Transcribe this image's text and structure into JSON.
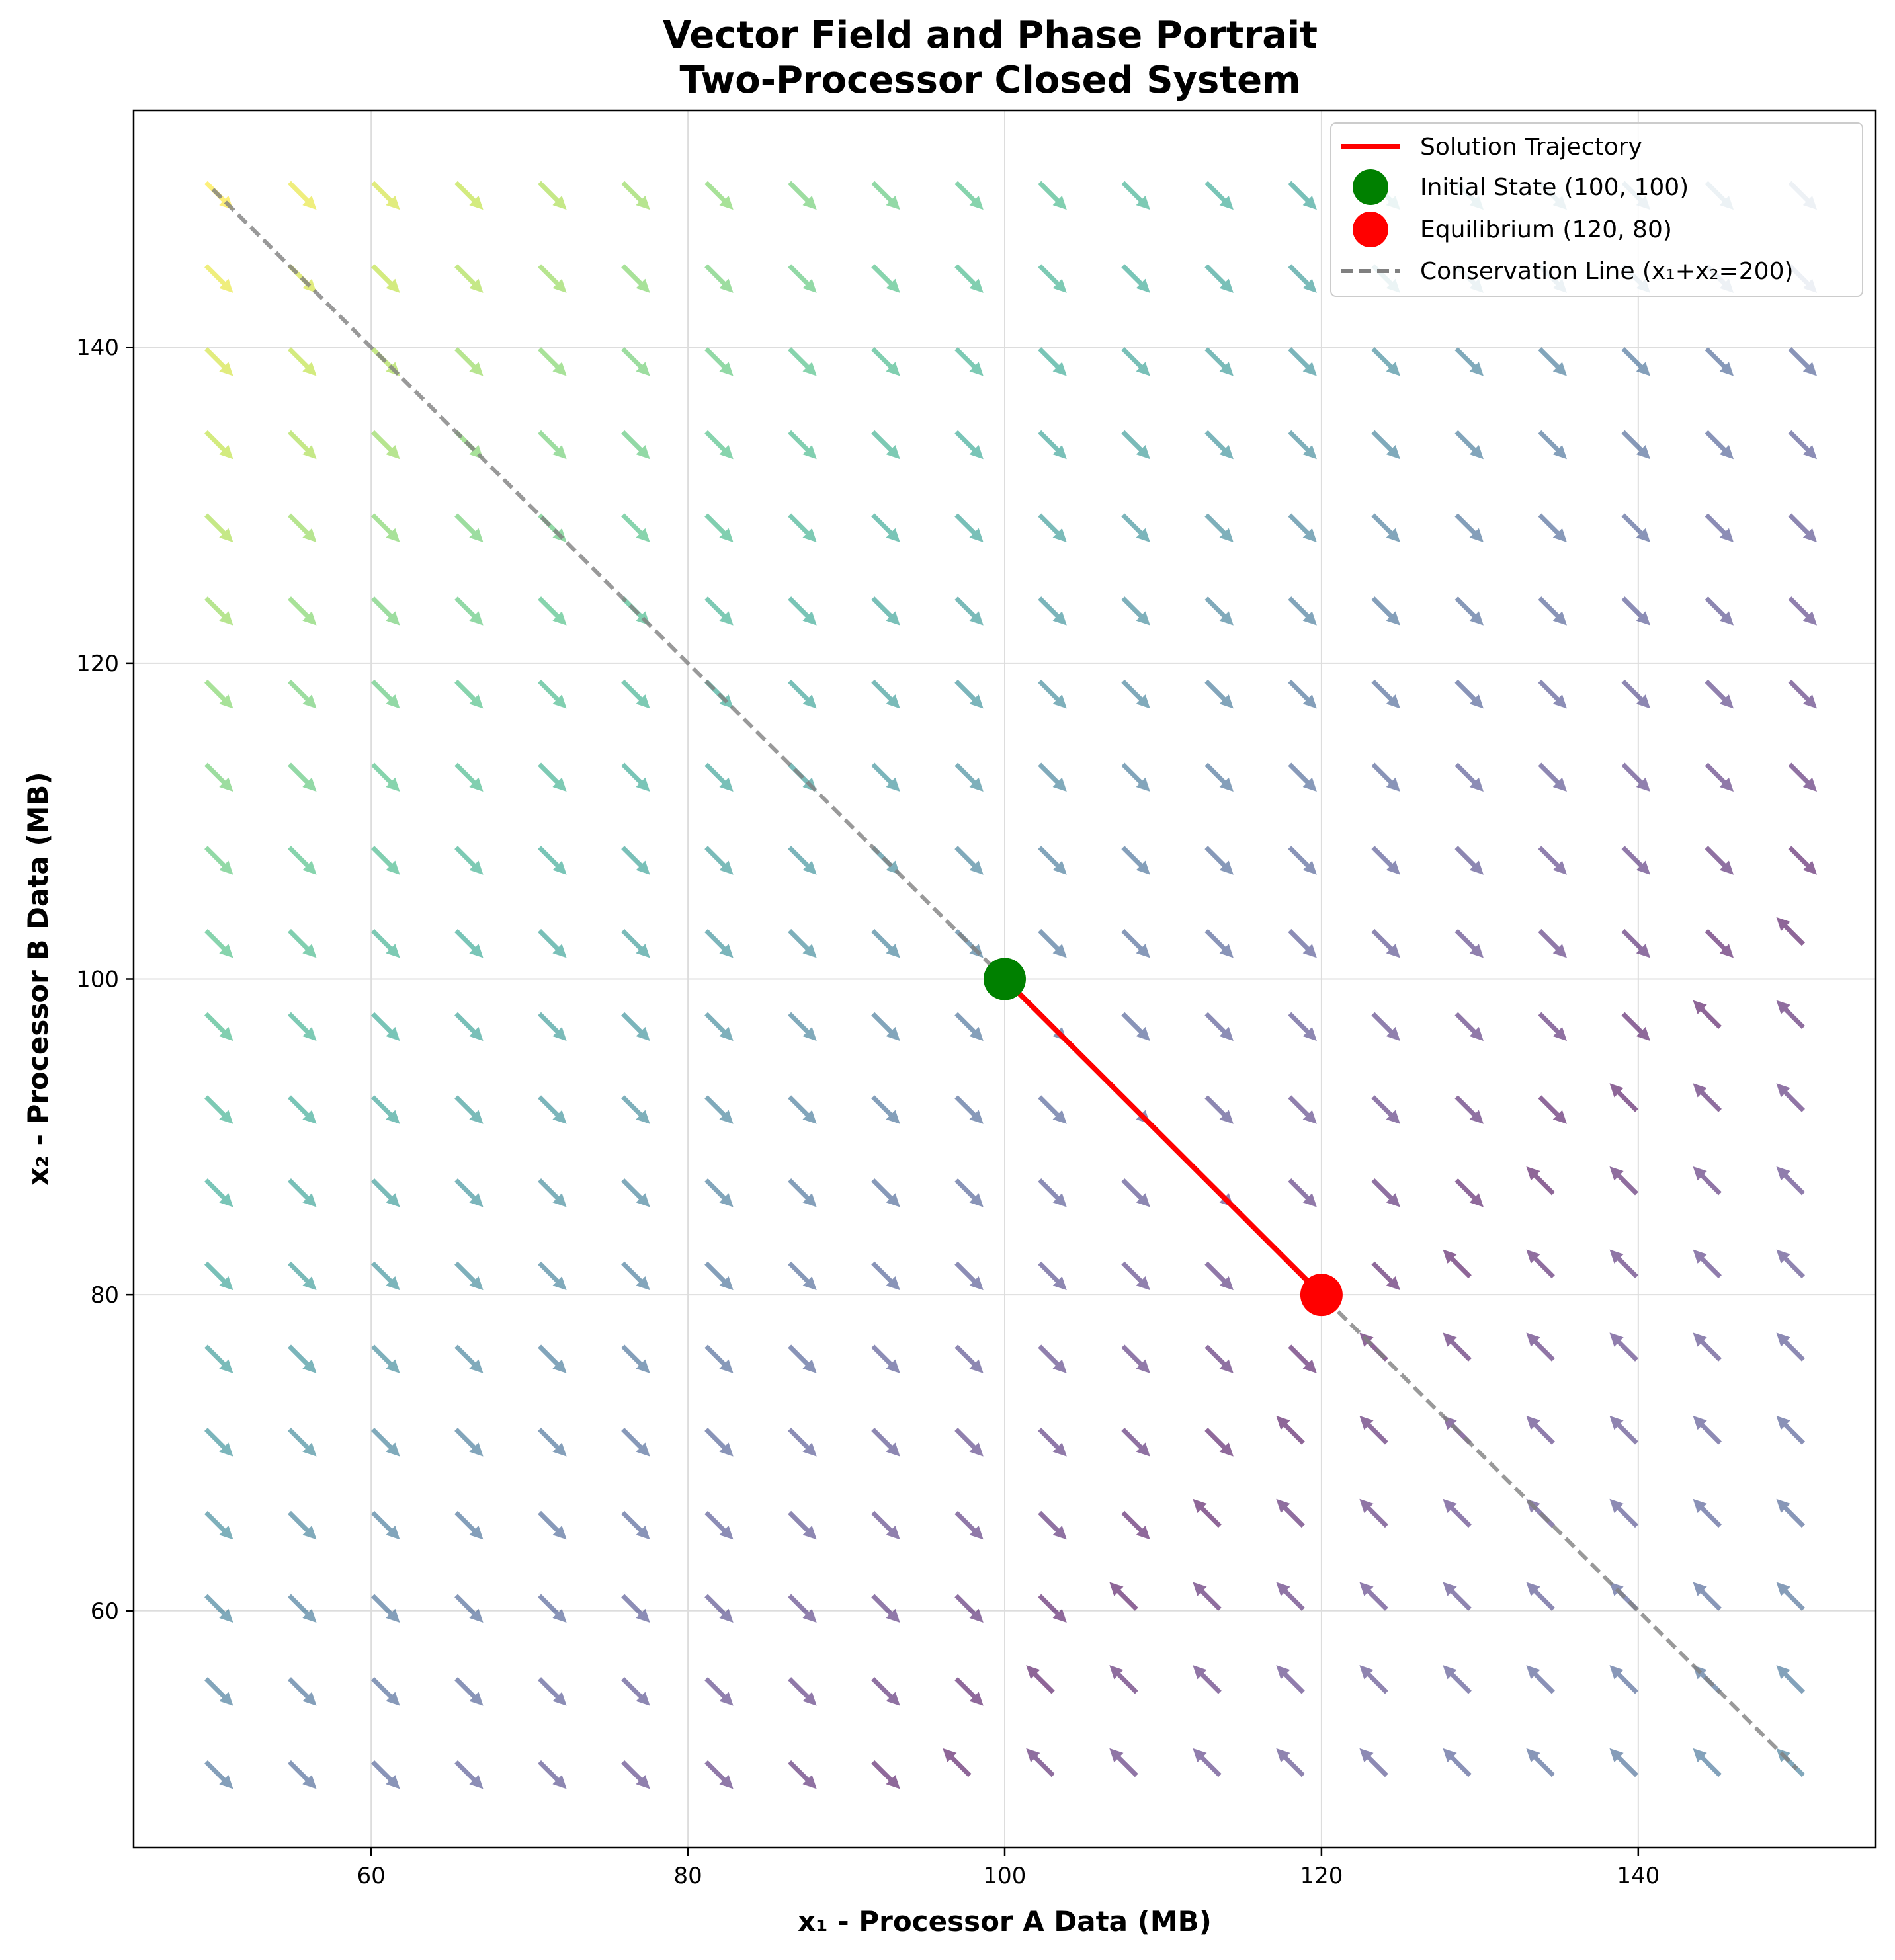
{
  "chart_data": {
    "type": "quiver",
    "title": "Vector Field and Phase Portrait",
    "subtitle": "Two-Processor Closed System",
    "xlabel": "x₁ - Processor A Data (MB)",
    "ylabel": "x₂ - Processor B Data (MB)",
    "xlim": [
      45,
      155
    ],
    "ylim": [
      45,
      155
    ],
    "xticks": [
      60,
      80,
      100,
      120,
      140
    ],
    "yticks": [
      60,
      80,
      100,
      120,
      140
    ],
    "grid": true,
    "colormap": "viridis",
    "vector_field": {
      "grid_min": 50,
      "grid_max": 150,
      "grid_points": 20,
      "equilibrium": [
        120,
        80
      ],
      "description": "normalized direction arrows colored by magnitude"
    },
    "series": [
      {
        "name": "Solution Trajectory",
        "type": "line",
        "color": "#ff0000",
        "x": [
          100,
          105,
          110,
          115,
          120
        ],
        "y": [
          100,
          95,
          90,
          85,
          80
        ]
      },
      {
        "name": "Initial State (100, 100)",
        "type": "marker",
        "color": "#008000",
        "x": [
          100
        ],
        "y": [
          100
        ]
      },
      {
        "name": "Equilibrium (120, 80)",
        "type": "marker",
        "color": "#ff0000",
        "x": [
          120
        ],
        "y": [
          80
        ]
      },
      {
        "name": "Conservation Line (x₁+x₂=200)",
        "type": "dashed-line",
        "color": "#808080",
        "x": [
          50,
          150
        ],
        "y": [
          150,
          50
        ]
      }
    ],
    "legend_position": "top-right"
  }
}
